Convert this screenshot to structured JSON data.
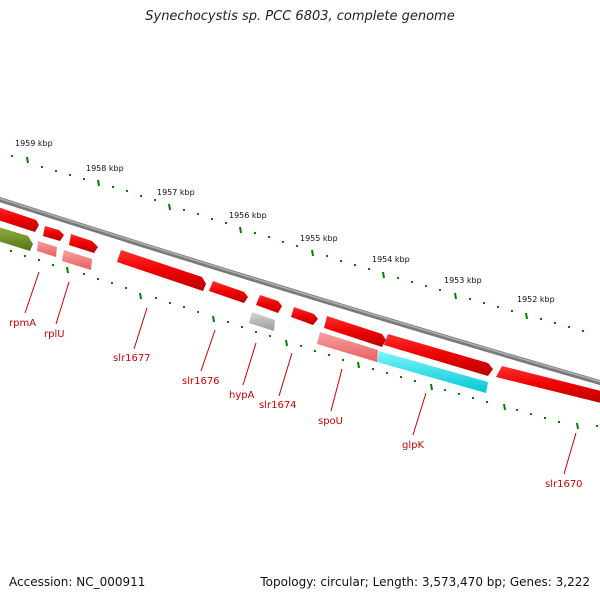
{
  "title": "Synechocystis sp. PCC 6803, complete genome",
  "footer": {
    "accession": "Accession: NC_000911",
    "topology": "Topology: circular; Length: 3,573,470 bp; Genes: 3,222"
  },
  "ticks": [
    "1959 kbp",
    "1958 kbp",
    "1957 kbp",
    "1956 kbp",
    "1955 kbp",
    "1954 kbp",
    "1953 kbp",
    "1952 kbp"
  ],
  "genes": [
    "rpmA",
    "rplU",
    "slr1677",
    "slr1676",
    "hypA",
    "slr1674",
    "spoU",
    "glpK",
    "slr1670"
  ],
  "colors": {
    "gene": "#ee0000",
    "gene_light": "#ee7777",
    "hypothetical": "#aaaaaa",
    "glpk": "#00e5ee",
    "rna": "#6b8e23",
    "backbone": "#888888",
    "tick": "#008000",
    "label": "#cc0000"
  }
}
